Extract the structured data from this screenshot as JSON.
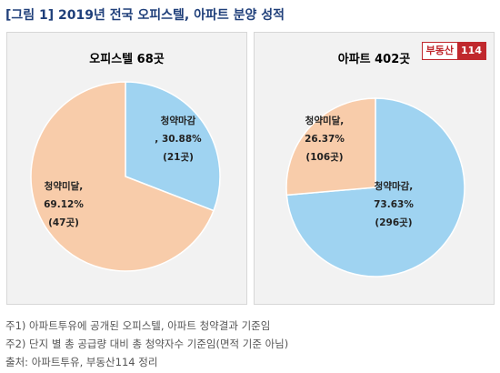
{
  "figure_title": "[그림 1] 2019년 전국 오피스텔, 아파트 분양 성적",
  "logo": {
    "brand": "부동산",
    "number": "114"
  },
  "chart_data": [
    {
      "type": "pie",
      "title": "오피스텔 68곳",
      "slices": [
        {
          "label": "청약마감",
          "value_text": ", 30.88%",
          "percent": 30.88,
          "count_text": "(21곳)",
          "color": "#9fd3f1"
        },
        {
          "label": "청약미달,",
          "value_text": "69.12%",
          "percent": 69.12,
          "count_text": "(47곳)",
          "color": "#f8ccaa"
        }
      ]
    },
    {
      "type": "pie",
      "title": "아파트 402곳",
      "slices": [
        {
          "label": "청약마감,",
          "value_text": "73.63%",
          "percent": 73.63,
          "count_text": "(296곳)",
          "color": "#9fd3f1"
        },
        {
          "label": "청약미달,",
          "value_text": "26.37%",
          "percent": 26.37,
          "count_text": "(106곳)",
          "color": "#f8ccaa"
        }
      ]
    }
  ],
  "notes": [
    "주1) 아파트투유에 공개된 오피스텔, 아파트 청약결과 기준임",
    "주2) 단지 별 총 공급량 대비 총 청약자수 기준임(면적 기준 아님)",
    "출처: 아파트투유, 부동산114 정리"
  ]
}
